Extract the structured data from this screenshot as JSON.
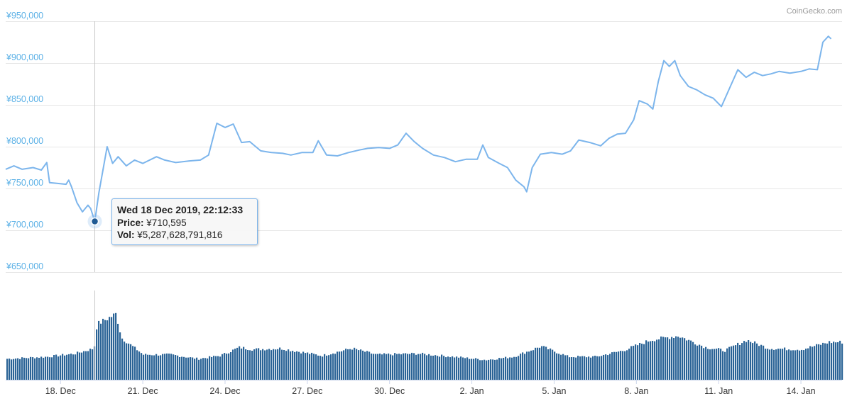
{
  "credit": "CoinGecko.com",
  "tooltip": {
    "date": "Wed 18 Dec 2019, 22:12:33",
    "price_label": "Price:",
    "price_value": "¥710,595",
    "vol_label": "Vol:",
    "vol_value": "¥5,287,628,791,816"
  },
  "colors": {
    "price_line": "#7cb5ec",
    "volume_bar": "#2a6396",
    "axis_text": "#5ab0e6",
    "marker": "#1f5a94"
  },
  "chart_data": {
    "type": "line",
    "title": "",
    "xlabel": "",
    "ylabel": "",
    "ylim": [
      650000,
      950000
    ],
    "y_ticks": [
      "¥650,000",
      "¥700,000",
      "¥750,000",
      "¥800,000",
      "¥850,000",
      "¥900,000",
      "¥950,000"
    ],
    "y_tick_values": [
      650000,
      700000,
      750000,
      800000,
      850000,
      900000,
      950000
    ],
    "x_ticks": [
      "18. Dec",
      "21. Dec",
      "24. Dec",
      "27. Dec",
      "30. Dec",
      "2. Jan",
      "5. Jan",
      "8. Jan",
      "11. Jan",
      "14. Jan"
    ],
    "x_tick_days": [
      2,
      5,
      8,
      11,
      14,
      17,
      20,
      23,
      26,
      29
    ],
    "xlim_days": [
      0,
      30.5
    ],
    "grid": true,
    "hover_point": {
      "day": 3.25,
      "price": 710595
    },
    "series": [
      {
        "values": [
          [
            0.0,
            773000
          ],
          [
            0.3,
            777000
          ],
          [
            0.6,
            773000
          ],
          [
            1.0,
            775000
          ],
          [
            1.3,
            772000
          ],
          [
            1.5,
            781000
          ],
          [
            1.6,
            757000
          ],
          [
            1.9,
            756000
          ],
          [
            2.2,
            755000
          ],
          [
            2.3,
            760000
          ],
          [
            2.4,
            752000
          ],
          [
            2.6,
            733000
          ],
          [
            2.8,
            722000
          ],
          [
            3.0,
            730000
          ],
          [
            3.1,
            726000
          ],
          [
            3.25,
            710595
          ],
          [
            3.4,
            745000
          ],
          [
            3.7,
            800000
          ],
          [
            3.9,
            780000
          ],
          [
            4.1,
            788000
          ],
          [
            4.4,
            777000
          ],
          [
            4.7,
            784000
          ],
          [
            5.0,
            780000
          ],
          [
            5.5,
            788000
          ],
          [
            5.8,
            784000
          ],
          [
            6.2,
            781000
          ],
          [
            6.7,
            783000
          ],
          [
            7.1,
            784000
          ],
          [
            7.4,
            790000
          ],
          [
            7.7,
            828000
          ],
          [
            8.0,
            823000
          ],
          [
            8.3,
            827000
          ],
          [
            8.6,
            805000
          ],
          [
            8.9,
            806000
          ],
          [
            9.3,
            795000
          ],
          [
            9.7,
            793000
          ],
          [
            10.1,
            792000
          ],
          [
            10.4,
            790000
          ],
          [
            10.8,
            793000
          ],
          [
            11.2,
            793000
          ],
          [
            11.4,
            807000
          ],
          [
            11.7,
            790000
          ],
          [
            12.1,
            789000
          ],
          [
            12.5,
            793000
          ],
          [
            12.9,
            796000
          ],
          [
            13.2,
            798000
          ],
          [
            13.6,
            799000
          ],
          [
            14.0,
            798000
          ],
          [
            14.3,
            802000
          ],
          [
            14.6,
            816000
          ],
          [
            14.9,
            806000
          ],
          [
            15.2,
            798000
          ],
          [
            15.6,
            790000
          ],
          [
            16.0,
            787000
          ],
          [
            16.4,
            782000
          ],
          [
            16.8,
            785000
          ],
          [
            17.2,
            785000
          ],
          [
            17.4,
            802000
          ],
          [
            17.6,
            787000
          ],
          [
            18.0,
            780000
          ],
          [
            18.3,
            775000
          ],
          [
            18.6,
            760000
          ],
          [
            18.9,
            752000
          ],
          [
            19.0,
            746000
          ],
          [
            19.2,
            775000
          ],
          [
            19.5,
            791000
          ],
          [
            19.9,
            793000
          ],
          [
            20.3,
            791000
          ],
          [
            20.6,
            795000
          ],
          [
            20.9,
            808000
          ],
          [
            21.3,
            805000
          ],
          [
            21.7,
            801000
          ],
          [
            22.0,
            810000
          ],
          [
            22.3,
            815000
          ],
          [
            22.6,
            816000
          ],
          [
            22.9,
            832000
          ],
          [
            23.1,
            855000
          ],
          [
            23.4,
            851000
          ],
          [
            23.6,
            845000
          ],
          [
            23.8,
            878000
          ],
          [
            24.0,
            903000
          ],
          [
            24.2,
            896000
          ],
          [
            24.4,
            903000
          ],
          [
            24.6,
            885000
          ],
          [
            24.9,
            872000
          ],
          [
            25.2,
            868000
          ],
          [
            25.5,
            862000
          ],
          [
            25.8,
            858000
          ],
          [
            26.1,
            848000
          ],
          [
            26.4,
            870000
          ],
          [
            26.7,
            892000
          ],
          [
            27.0,
            883000
          ],
          [
            27.3,
            889000
          ],
          [
            27.6,
            885000
          ],
          [
            27.9,
            887000
          ],
          [
            28.2,
            890000
          ],
          [
            28.6,
            888000
          ],
          [
            29.0,
            890000
          ],
          [
            29.3,
            893000
          ],
          [
            29.6,
            892000
          ],
          [
            29.8,
            925000
          ],
          [
            30.0,
            932000
          ],
          [
            30.1,
            929000
          ]
        ]
      }
    ],
    "volume_profile": [
      [
        0.0,
        0.2
      ],
      [
        1.5,
        0.22
      ],
      [
        2.5,
        0.25
      ],
      [
        3.2,
        0.3
      ],
      [
        3.3,
        0.53
      ],
      [
        4.0,
        0.63
      ],
      [
        4.2,
        0.4
      ],
      [
        4.7,
        0.3
      ],
      [
        5.0,
        0.24
      ],
      [
        6.0,
        0.24
      ],
      [
        7.0,
        0.2
      ],
      [
        7.8,
        0.23
      ],
      [
        8.5,
        0.31
      ],
      [
        9.0,
        0.29
      ],
      [
        10.0,
        0.3
      ],
      [
        11.5,
        0.23
      ],
      [
        12.6,
        0.3
      ],
      [
        13.5,
        0.24
      ],
      [
        15.0,
        0.25
      ],
      [
        16.3,
        0.22
      ],
      [
        17.5,
        0.19
      ],
      [
        18.5,
        0.22
      ],
      [
        19.5,
        0.32
      ],
      [
        20.5,
        0.22
      ],
      [
        21.5,
        0.22
      ],
      [
        22.5,
        0.28
      ],
      [
        23.5,
        0.38
      ],
      [
        24.5,
        0.42
      ],
      [
        25.5,
        0.31
      ],
      [
        26.2,
        0.28
      ],
      [
        27.0,
        0.38
      ],
      [
        27.8,
        0.3
      ],
      [
        29.0,
        0.29
      ],
      [
        30.0,
        0.36
      ],
      [
        30.5,
        0.36
      ]
    ],
    "volume_unit_note": ""
  }
}
